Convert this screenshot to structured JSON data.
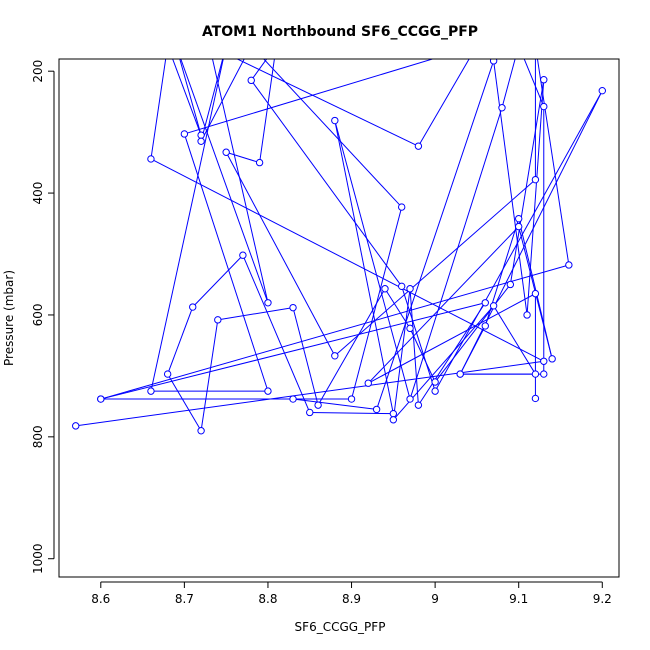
{
  "chart_data": {
    "type": "line",
    "title": "ATOM1 Northbound SF6_CCGG_PFP",
    "xlabel": "SF6_CCGG_PFP",
    "ylabel": "Pressure (mbar)",
    "xlim": [
      8.55,
      9.22
    ],
    "ylim": [
      1030,
      180
    ],
    "y_reversed": true,
    "xticks": [
      8.6,
      8.7,
      8.8,
      8.9,
      9.0,
      9.1,
      9.2
    ],
    "yticks": [
      200,
      400,
      600,
      800,
      1000
    ],
    "grid": false,
    "legend": "none",
    "colors": {
      "series": "#0000ff",
      "axes": "#000000"
    },
    "series": [
      {
        "marker": "open-circle",
        "points": [
          {
            "x": 8.57,
            "y": 782
          },
          {
            "x": 9.13,
            "y": 676
          },
          {
            "x": 8.66,
            "y": 344
          },
          {
            "x": 8.68,
            "y": 158
          },
          {
            "x": 8.72,
            "y": 305
          },
          {
            "x": 8.69,
            "y": 158
          },
          {
            "x": 8.8,
            "y": 580
          },
          {
            "x": 8.73,
            "y": 158
          },
          {
            "x": 8.98,
            "y": 323
          },
          {
            "x": 9.05,
            "y": 158
          },
          {
            "x": 8.7,
            "y": 303
          },
          {
            "x": 8.8,
            "y": 725
          },
          {
            "x": 8.66,
            "y": 725
          },
          {
            "x": 8.75,
            "y": 158
          },
          {
            "x": 8.72,
            "y": 315
          },
          {
            "x": 8.78,
            "y": 158
          },
          {
            "x": 8.96,
            "y": 423
          },
          {
            "x": 8.9,
            "y": 738
          },
          {
            "x": 8.6,
            "y": 738
          },
          {
            "x": 9.16,
            "y": 518
          },
          {
            "x": 9.12,
            "y": 158
          },
          {
            "x": 9.12,
            "y": 378
          },
          {
            "x": 8.88,
            "y": 667
          },
          {
            "x": 8.75,
            "y": 333
          },
          {
            "x": 8.79,
            "y": 350
          },
          {
            "x": 8.81,
            "y": 158
          },
          {
            "x": 8.78,
            "y": 215
          },
          {
            "x": 8.96,
            "y": 553
          },
          {
            "x": 9.0,
            "y": 725
          },
          {
            "x": 9.2,
            "y": 232
          },
          {
            "x": 9.03,
            "y": 697
          },
          {
            "x": 9.13,
            "y": 697
          },
          {
            "x": 9.13,
            "y": 258
          },
          {
            "x": 9.1,
            "y": 158
          },
          {
            "x": 9.08,
            "y": 260
          },
          {
            "x": 8.97,
            "y": 738
          },
          {
            "x": 8.88,
            "y": 281
          },
          {
            "x": 8.95,
            "y": 762
          },
          {
            "x": 8.85,
            "y": 760
          },
          {
            "x": 8.77,
            "y": 502
          },
          {
            "x": 8.71,
            "y": 587
          },
          {
            "x": 8.68,
            "y": 697
          },
          {
            "x": 8.72,
            "y": 790
          },
          {
            "x": 8.74,
            "y": 608
          },
          {
            "x": 8.83,
            "y": 588
          },
          {
            "x": 8.86,
            "y": 748
          },
          {
            "x": 8.94,
            "y": 557
          },
          {
            "x": 8.97,
            "y": 622
          },
          {
            "x": 9.0,
            "y": 710
          },
          {
            "x": 9.09,
            "y": 550
          },
          {
            "x": 9.13,
            "y": 214
          },
          {
            "x": 9.11,
            "y": 600
          },
          {
            "x": 9.07,
            "y": 183
          },
          {
            "x": 8.93,
            "y": 755
          },
          {
            "x": 8.83,
            "y": 738
          },
          {
            "x": 8.6,
            "y": 738
          },
          {
            "x": 9.06,
            "y": 580
          },
          {
            "x": 8.98,
            "y": 748
          },
          {
            "x": 8.97,
            "y": 557
          },
          {
            "x": 8.95,
            "y": 772
          },
          {
            "x": 9.07,
            "y": 585
          },
          {
            "x": 9.12,
            "y": 697
          },
          {
            "x": 9.03,
            "y": 697
          },
          {
            "x": 9.06,
            "y": 618
          },
          {
            "x": 9.1,
            "y": 442
          },
          {
            "x": 9.14,
            "y": 672
          },
          {
            "x": 9.1,
            "y": 455
          },
          {
            "x": 8.92,
            "y": 712
          },
          {
            "x": 9.12,
            "y": 565
          },
          {
            "x": 9.12,
            "y": 737
          }
        ]
      }
    ]
  }
}
